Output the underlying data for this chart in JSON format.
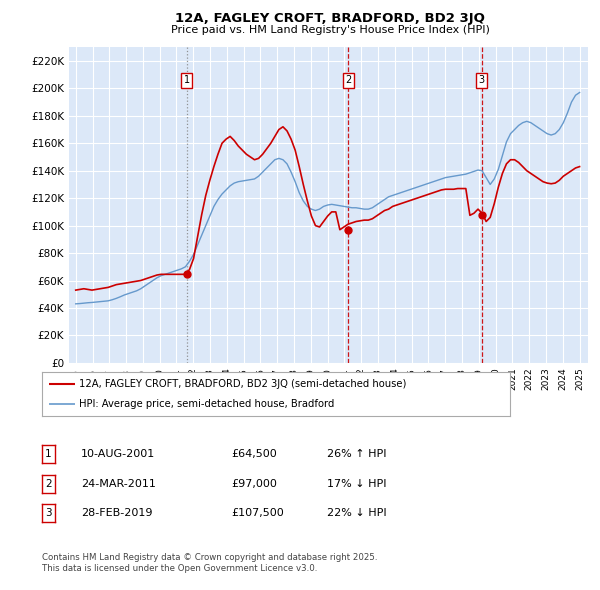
{
  "title": "12A, FAGLEY CROFT, BRADFORD, BD2 3JQ",
  "subtitle": "Price paid vs. HM Land Registry's House Price Index (HPI)",
  "ylim": [
    0,
    230000
  ],
  "yticks": [
    0,
    20000,
    40000,
    60000,
    80000,
    100000,
    120000,
    140000,
    160000,
    180000,
    200000,
    220000
  ],
  "ytick_labels": [
    "£0",
    "£20K",
    "£40K",
    "£60K",
    "£80K",
    "£100K",
    "£120K",
    "£140K",
    "£160K",
    "£180K",
    "£200K",
    "£220K"
  ],
  "background_color": "#dce8f8",
  "line1_color": "#cc0000",
  "line2_color": "#6699cc",
  "legend_line1": "12A, FAGLEY CROFT, BRADFORD, BD2 3JQ (semi-detached house)",
  "legend_line2": "HPI: Average price, semi-detached house, Bradford",
  "marker_dates": [
    2001.62,
    2011.23,
    2019.16
  ],
  "marker_values_line1": [
    64500,
    97000,
    107500
  ],
  "marker_labels": [
    "1",
    "2",
    "3"
  ],
  "marker_linestyles": [
    "dotted",
    "dashed",
    "dashed"
  ],
  "marker_linecolors": [
    "#888888",
    "#cc0000",
    "#cc0000"
  ],
  "table_data": [
    [
      "1",
      "10-AUG-2001",
      "£64,500",
      "26% ↑ HPI"
    ],
    [
      "2",
      "24-MAR-2011",
      "£97,000",
      "17% ↓ HPI"
    ],
    [
      "3",
      "28-FEB-2019",
      "£107,500",
      "22% ↓ HPI"
    ]
  ],
  "footer_text": "Contains HM Land Registry data © Crown copyright and database right 2025.\nThis data is licensed under the Open Government Licence v3.0.",
  "hpi_data_y": [
    43000,
    43200,
    43500,
    43800,
    44000,
    44300,
    44600,
    44900,
    45200,
    46000,
    47000,
    48200,
    49500,
    50500,
    51500,
    52500,
    54000,
    56000,
    58000,
    60000,
    62000,
    63500,
    64500,
    65500,
    66500,
    67500,
    68500,
    70000,
    74000,
    79000,
    86000,
    93000,
    100000,
    107000,
    114000,
    119000,
    123000,
    126000,
    129000,
    131000,
    132000,
    132500,
    133000,
    133500,
    134000,
    136000,
    139000,
    142000,
    145000,
    148000,
    149000,
    148000,
    145000,
    139000,
    132000,
    124000,
    118000,
    114000,
    112000,
    111000,
    112000,
    114000,
    115000,
    115500,
    115000,
    114500,
    114000,
    113500,
    113000,
    113000,
    112500,
    112000,
    112000,
    113000,
    115000,
    117000,
    119000,
    121000,
    122000,
    123000,
    124000,
    125000,
    126000,
    127000,
    128000,
    129000,
    130000,
    131000,
    132000,
    133000,
    134000,
    135000,
    135500,
    136000,
    136500,
    137000,
    137500,
    138500,
    139500,
    140500,
    140000,
    135000,
    130000,
    134000,
    141000,
    151000,
    161000,
    167000,
    170000,
    173000,
    175000,
    176000,
    175000,
    173000,
    171000,
    169000,
    167000,
    166000,
    167000,
    170000,
    175000,
    182000,
    190000,
    195000,
    197000
  ],
  "price_data_y": [
    53000,
    53500,
    54000,
    53500,
    53000,
    53500,
    54000,
    54500,
    55000,
    56000,
    57000,
    57500,
    58000,
    58500,
    59000,
    59500,
    60000,
    61000,
    62000,
    63000,
    64000,
    64500,
    64500,
    64500,
    64500,
    64500,
    64500,
    64500,
    68000,
    76000,
    92000,
    108000,
    122000,
    133000,
    143000,
    152000,
    160000,
    163000,
    165000,
    162000,
    158000,
    155000,
    152000,
    150000,
    148000,
    149000,
    152000,
    156000,
    160000,
    165000,
    170000,
    172000,
    169000,
    163000,
    155000,
    143000,
    130000,
    118000,
    107000,
    100000,
    99000,
    103000,
    107000,
    110000,
    110000,
    97000,
    99000,
    101000,
    102000,
    103000,
    103500,
    104000,
    104000,
    105000,
    107000,
    109000,
    111000,
    112000,
    114000,
    115000,
    116000,
    117000,
    118000,
    119000,
    120000,
    121000,
    122000,
    123000,
    124000,
    125000,
    126000,
    126500,
    126500,
    126500,
    127000,
    127000,
    127000,
    107500,
    109000,
    112000,
    109000,
    103000,
    106000,
    116000,
    128000,
    138000,
    145000,
    148000,
    148000,
    146000,
    143000,
    140000,
    138000,
    136000,
    134000,
    132000,
    131000,
    130500,
    131000,
    133000,
    136000,
    138000,
    140000,
    142000,
    143000
  ]
}
